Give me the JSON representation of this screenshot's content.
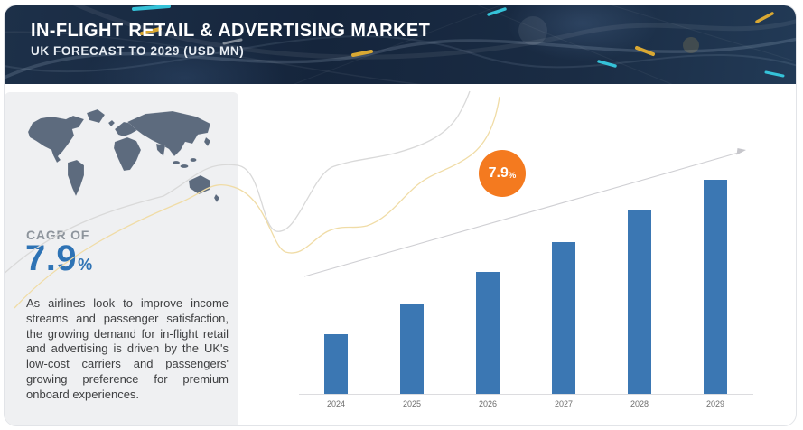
{
  "header": {
    "title": "IN-FLIGHT RETAIL & ADVERTISING MARKET",
    "subtitle": "UK FORECAST TO 2029 (USD MN)"
  },
  "sidebar": {
    "cagr_label": "CAGR OF",
    "cagr_value": "7.9",
    "cagr_unit": "%",
    "description": "As airlines look to improve income streams and passenger satisfaction, the growing demand for in-flight retail and advertising is driven by the UK's low-cost carriers and passengers' growing preference for premium onboard experiences."
  },
  "growth_badge": {
    "value": "7.9",
    "unit": "%"
  },
  "chart_data": {
    "type": "bar",
    "title": "In-Flight Retail & Advertising Market — UK Forecast to 2029 (USD MN)",
    "categories": [
      "2024",
      "2025",
      "2026",
      "2027",
      "2028",
      "2029"
    ],
    "values": [
      28,
      42,
      57,
      71,
      86,
      100
    ],
    "value_note": "No numeric y-axis shown in source; values are relative bar heights (2029 = 100)",
    "xlabel": "",
    "ylabel": "",
    "gridlines": false,
    "legend": null,
    "cagr": "7.9%",
    "bar_color": "#3b77b3",
    "axis_color": "#dcdcdf"
  },
  "colors": {
    "header_bg": "#16273d",
    "panel_bg": "#eff0f2",
    "map_fill": "#5d6b7e",
    "accent_blue": "#2e73b5",
    "accent_orange": "#f47a1f",
    "wave_gray": "#d9d9d9",
    "wave_gold": "#f0dca6"
  }
}
